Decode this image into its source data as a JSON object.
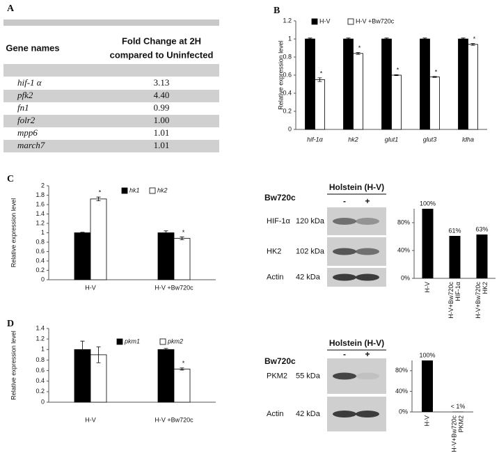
{
  "panel_labels": [
    "A",
    "B",
    "C",
    "D"
  ],
  "table": {
    "header": {
      "gene": "Gene names",
      "fold_change": [
        "Fold Change at 2H",
        "compared to Uninfected"
      ]
    },
    "rows": [
      [
        "hif-1 α",
        "3.13"
      ],
      [
        "pfk2",
        "4.40"
      ],
      [
        "fn1",
        "0.99"
      ],
      [
        "folr2",
        "1.00"
      ],
      [
        "mpp6",
        "1.01"
      ],
      [
        "march7",
        "1.01"
      ]
    ]
  },
  "chart_data": [
    {
      "type": "bar",
      "y_label": "Relative expression level",
      "categories": [
        "hif-1α",
        "hk2",
        "glut1",
        "glut3",
        "ldha"
      ],
      "series": [
        {
          "name": "H-V",
          "color": "#000000",
          "values": [
            1,
            1,
            1,
            1,
            1
          ],
          "errors": [
            0.01,
            0.01,
            0.01,
            0.01,
            0.01
          ]
        },
        {
          "name": "H-V +Bw720c",
          "color": "#ffffff",
          "values": [
            0.55,
            0.84,
            0.6,
            0.58,
            0.94
          ],
          "errors": [
            0.02,
            0.01,
            0.005,
            0.005,
            0.01
          ],
          "significance": [
            "*",
            "*",
            "*",
            "*",
            "*"
          ]
        }
      ],
      "ylim": [
        0,
        1.2
      ],
      "yticks": [
        0,
        0.2,
        0.4,
        0.6,
        0.8,
        1,
        1.2
      ]
    },
    {
      "type": "bar",
      "y_label": "Relative expression level",
      "categories": [
        "H-V",
        "H-V +Bw720c"
      ],
      "series": [
        {
          "name": "hk1",
          "color": "#000000",
          "values": [
            1,
            1
          ],
          "errors": [
            0.01,
            0.04
          ]
        },
        {
          "name": "hk2",
          "color": "#ffffff",
          "values": [
            1.72,
            0.88
          ],
          "errors": [
            0.04,
            0.03
          ],
          "significance": [
            "*",
            "*"
          ]
        }
      ],
      "ylim": [
        0,
        2
      ],
      "yticks": [
        0,
        0.2,
        0.4,
        0.6,
        0.8,
        1,
        1.2,
        1.4,
        1.6,
        1.8,
        2
      ]
    },
    {
      "type": "bar",
      "color": "#000000",
      "categories": [
        [
          "H-V"
        ],
        [
          "H-V+Bw720c",
          "HIF-1α"
        ],
        [
          "H-V+Bw720c",
          "HK2"
        ]
      ],
      "values": [
        100,
        61,
        63
      ],
      "value_labels": [
        "100%",
        "61%",
        "63%"
      ],
      "ylim": [
        0,
        100
      ],
      "yticks": [
        {
          "value": 0,
          "label": "0%"
        },
        {
          "value": 40,
          "label": "40%"
        },
        {
          "value": 80,
          "label": "80%"
        }
      ]
    },
    {
      "type": "bar",
      "y_label": "Relative expression level",
      "categories": [
        "H-V",
        "H-V +Bw720c"
      ],
      "series": [
        {
          "name": "pkm1",
          "color": "#000000",
          "values": [
            1,
            1
          ],
          "errors": [
            0.16,
            0.02
          ]
        },
        {
          "name": "pkm2",
          "color": "#ffffff",
          "values": [
            0.9,
            0.63
          ],
          "errors": [
            0.15,
            0.02
          ],
          "significance": [
            null,
            "*"
          ]
        }
      ],
      "ylim": [
        0,
        1.4
      ],
      "yticks": [
        0,
        0.2,
        0.4,
        0.6,
        0.8,
        1,
        1.2,
        1.4
      ]
    },
    {
      "type": "bar",
      "color": "#000000",
      "categories": [
        [
          "H-V"
        ],
        [
          "H-V+Bw720c",
          "PKM2"
        ]
      ],
      "values": [
        100,
        0.5
      ],
      "value_labels": [
        "100%",
        "< 1%"
      ],
      "ylim": [
        0,
        100
      ],
      "yticks": [
        {
          "value": 0,
          "label": "0%"
        },
        {
          "value": 40,
          "label": "40%"
        },
        {
          "value": 80,
          "label": "80%"
        }
      ]
    }
  ],
  "blots": [
    {
      "treatment": "Bw720c",
      "group": "Holstein (H-V)",
      "lanes": [
        "-",
        "+"
      ],
      "rows": [
        {
          "protein": "HIF-1α",
          "size": "120 kDa"
        },
        {
          "protein": "HK2",
          "size": "102 kDa"
        },
        {
          "protein": "Actin",
          "size": "42 kDa"
        }
      ]
    },
    {
      "treatment": "Bw720c",
      "group": "Holstein (H-V)",
      "lanes": [
        "-",
        "+"
      ],
      "rows": [
        {
          "protein": "PKM2",
          "size": "55 kDa"
        },
        {
          "protein": "Actin",
          "size": "42 kDa"
        }
      ]
    }
  ]
}
